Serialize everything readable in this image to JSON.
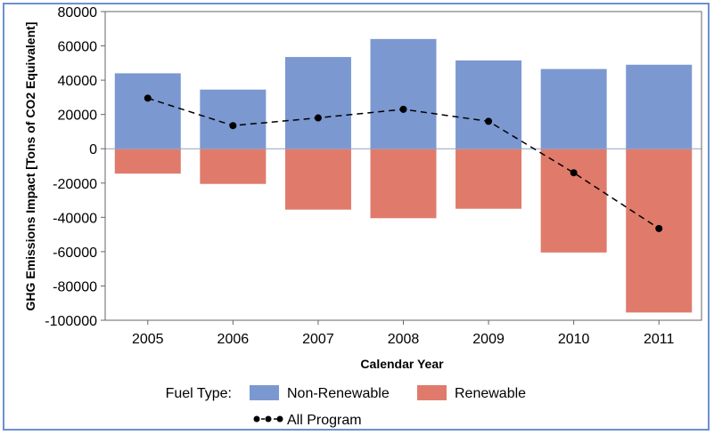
{
  "chart_data": {
    "type": "bar",
    "categories": [
      "2005",
      "2006",
      "2007",
      "2008",
      "2009",
      "2010",
      "2011"
    ],
    "series": [
      {
        "name": "Non-Renewable",
        "kind": "bar",
        "color": "#7b98d1",
        "values": [
          44000,
          34500,
          53500,
          64000,
          51500,
          46500,
          49000
        ]
      },
      {
        "name": "Renewable",
        "kind": "bar",
        "color": "#e07b6c",
        "values": [
          -14500,
          -20500,
          -35500,
          -40500,
          -35000,
          -60500,
          -95500
        ]
      },
      {
        "name": "All Program",
        "kind": "line",
        "color": "#000000",
        "values": [
          29500,
          13500,
          18000,
          23000,
          16000,
          -14000,
          -46500
        ]
      }
    ],
    "xlabel": "Calendar Year",
    "ylabel": "GHG Emissions Impact [Tons of CO2 Equivalent]",
    "ylim": [
      -100000,
      80000
    ],
    "yticks": [
      -100000,
      -80000,
      -60000,
      -40000,
      -20000,
      0,
      20000,
      40000,
      60000,
      80000
    ],
    "ytick_labels": [
      "-100000",
      "-80000",
      "-60000",
      "-40000",
      "-20000",
      "0",
      "20000",
      "40000",
      "60000",
      "80000"
    ],
    "legend_title": "Fuel Type:",
    "legend_position": "bottom",
    "grid": false
  }
}
